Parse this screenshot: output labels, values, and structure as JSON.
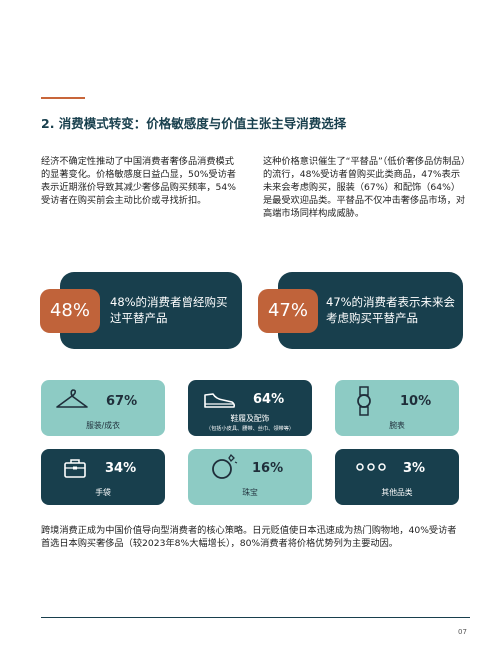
{
  "section": {
    "title": "2.   消费模式转变：价格敏感度与价值主张主导消费选择"
  },
  "paragraphs": {
    "left": "经济不确定性推动了中国消费者奢侈品消费模式的显著变化。价格敏感度日益凸显，50%受访者表示近期涨价导致其减少奢侈品购买频率，54%受访者在购买前会主动比价或寻找折扣。",
    "right": "这种价格意识催生了“平替品”（低价奢侈品仿制品）的流行，48%受访者曾购买此类商品，47%表示未来会考虑购买，服装（67%）和配饰（64%）是最受欢迎品类。平替品不仅冲击奢侈品市场，对高端市场同样构成威胁。",
    "bottom": "跨境消费正成为中国价值导向型消费者的核心策略。日元贬值使日本迅速成为热门购物地，40%受访者首选日本购买奢侈品（较2023年8%大幅增长），80%消费者将价格优势列为主要动因。"
  },
  "stats": [
    {
      "value": "48%",
      "text": "48%的消费者曾经购买过平替产品"
    },
    {
      "value": "47%",
      "text": "47%的消费者表示未来会考虑购买平替产品"
    }
  ],
  "categories": [
    {
      "pct": "67%",
      "label": "服装/成衣",
      "sub": "",
      "icon": "hanger-icon"
    },
    {
      "pct": "64%",
      "label": "鞋履及配饰",
      "sub": "（包括小皮具、腰带、丝巾、领带等）",
      "icon": "shoe-icon"
    },
    {
      "pct": "10%",
      "label": "腕表",
      "sub": "",
      "icon": "watch-icon"
    },
    {
      "pct": "34%",
      "label": "手袋",
      "sub": "",
      "icon": "handbag-icon"
    },
    {
      "pct": "16%",
      "label": "珠宝",
      "sub": "",
      "icon": "ring-icon"
    },
    {
      "pct": "3%",
      "label": "其他品类",
      "sub": "",
      "icon": "more-dots-icon"
    }
  ],
  "footer": {
    "page_number": "07"
  }
}
